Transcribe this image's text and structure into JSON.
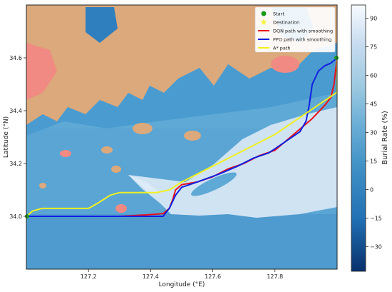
{
  "chart_data": {
    "type": "map",
    "xlabel": "Longitude (°E)",
    "ylabel": "Latitude (°N)",
    "xlim": [
      127.0,
      128.0
    ],
    "ylim": [
      33.8,
      34.8
    ],
    "x_ticks": [
      127.2,
      127.4,
      127.6,
      127.8
    ],
    "y_ticks": [
      34.0,
      34.2,
      34.4,
      34.6
    ],
    "tick_labels": {
      "x": [
        "127.2",
        "127.4",
        "127.6",
        "127.8"
      ],
      "y": [
        "34.0",
        "34.2",
        "34.4",
        "34.6"
      ]
    },
    "colorbar": {
      "label": "Burial Rate (%)",
      "ticks": [
        90,
        75,
        60,
        45,
        30,
        15,
        0,
        -15,
        -30
      ],
      "tick_labels": [
        "90",
        "75",
        "60",
        "45",
        "30",
        "15",
        "0",
        "−15",
        "−30"
      ],
      "range": [
        -43,
        97
      ],
      "colors": [
        "#08306b",
        "#2171b5",
        "#4292c6",
        "#6baed6",
        "#9ecae1",
        "#c6dbef",
        "#f7fbff"
      ]
    },
    "legend": {
      "position": "top-right",
      "entries": [
        {
          "label": "Start",
          "marker": "circle",
          "color": "#1a9a1a"
        },
        {
          "label": "Destination",
          "marker": "star",
          "color": "#f5f542"
        },
        {
          "label": "DQN path with smoothing",
          "marker": "line",
          "color": "#e8121b"
        },
        {
          "label": "PPO path with smoothing",
          "marker": "line",
          "color": "#1020e0"
        },
        {
          "label": "A* path",
          "marker": "line",
          "color": "#f0f020"
        }
      ]
    },
    "start": {
      "x": 127.0,
      "y": 34.0
    },
    "destination": {
      "x": 128.0,
      "y": 34.6
    },
    "series": [
      {
        "name": "DQN path with smoothing",
        "color": "#e8121b",
        "points": [
          [
            127.0,
            34.0
          ],
          [
            127.1,
            34.0
          ],
          [
            127.2,
            34.0
          ],
          [
            127.3,
            34.0
          ],
          [
            127.38,
            34.005
          ],
          [
            127.44,
            34.01
          ],
          [
            127.46,
            34.03
          ],
          [
            127.47,
            34.06
          ],
          [
            127.48,
            34.1
          ],
          [
            127.5,
            34.12
          ],
          [
            127.55,
            34.13
          ],
          [
            127.6,
            34.15
          ],
          [
            127.65,
            34.18
          ],
          [
            127.7,
            34.2
          ],
          [
            127.75,
            34.23
          ],
          [
            127.8,
            34.25
          ],
          [
            127.85,
            34.3
          ],
          [
            127.88,
            34.33
          ],
          [
            127.92,
            34.37
          ],
          [
            127.96,
            34.42
          ],
          [
            127.98,
            34.45
          ],
          [
            127.99,
            34.5
          ],
          [
            128.0,
            34.6
          ]
        ]
      },
      {
        "name": "PPO path with smoothing",
        "color": "#1020e0",
        "points": [
          [
            127.0,
            34.0
          ],
          [
            127.1,
            34.0
          ],
          [
            127.2,
            34.0
          ],
          [
            127.3,
            34.0
          ],
          [
            127.38,
            34.0
          ],
          [
            127.44,
            34.0
          ],
          [
            127.46,
            34.03
          ],
          [
            127.48,
            34.08
          ],
          [
            127.5,
            34.11
          ],
          [
            127.55,
            34.13
          ],
          [
            127.62,
            34.16
          ],
          [
            127.68,
            34.19
          ],
          [
            127.73,
            34.22
          ],
          [
            127.78,
            34.24
          ],
          [
            127.83,
            34.28
          ],
          [
            127.88,
            34.32
          ],
          [
            127.9,
            34.36
          ],
          [
            127.91,
            34.42
          ],
          [
            127.92,
            34.5
          ],
          [
            127.94,
            34.55
          ],
          [
            127.96,
            34.57
          ],
          [
            127.98,
            34.58
          ],
          [
            128.0,
            34.6
          ]
        ]
      },
      {
        "name": "A* path",
        "color": "#f0f020",
        "points": [
          [
            127.0,
            34.0
          ],
          [
            127.02,
            34.02
          ],
          [
            127.05,
            34.03
          ],
          [
            127.1,
            34.03
          ],
          [
            127.2,
            34.03
          ],
          [
            127.23,
            34.05
          ],
          [
            127.27,
            34.08
          ],
          [
            127.3,
            34.09
          ],
          [
            127.36,
            34.09
          ],
          [
            127.42,
            34.09
          ],
          [
            127.46,
            34.1
          ],
          [
            127.5,
            34.13
          ],
          [
            127.55,
            34.16
          ],
          [
            127.6,
            34.19
          ],
          [
            127.65,
            34.22
          ],
          [
            127.7,
            34.25
          ],
          [
            127.75,
            34.28
          ],
          [
            127.8,
            34.31
          ],
          [
            127.85,
            34.35
          ],
          [
            127.9,
            34.39
          ],
          [
            127.95,
            34.43
          ],
          [
            128.0,
            34.47
          ],
          [
            128.0,
            34.6
          ]
        ]
      }
    ]
  }
}
